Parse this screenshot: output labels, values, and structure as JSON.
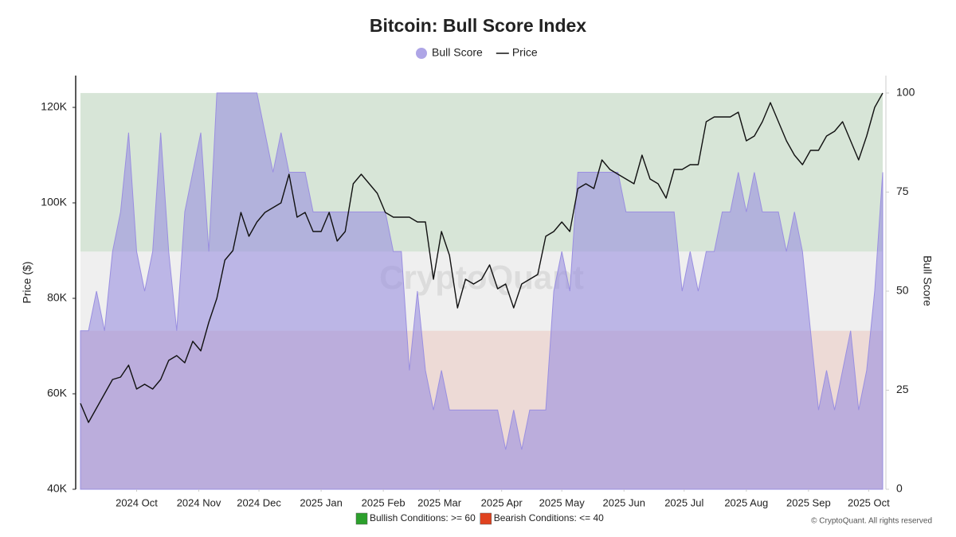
{
  "chart_data": {
    "type": "line",
    "title": "Bitcoin: Bull Score Index",
    "ylabel": "Price ($)",
    "y2label": "Bull Score",
    "watermark": "CryptoQuant",
    "copyright": "© CryptoQuant. All rights reserved",
    "xlim": [
      0,
      100
    ],
    "xticks": [
      {
        "value": 7,
        "label": "2024 Oct"
      },
      {
        "value": 14.75,
        "label": "2024 Nov"
      },
      {
        "value": 22.25,
        "label": "2024 Dec"
      },
      {
        "value": 30,
        "label": "2025 Jan"
      },
      {
        "value": 37.75,
        "label": "2025 Feb"
      },
      {
        "value": 44.75,
        "label": "2025 Mar"
      },
      {
        "value": 52.5,
        "label": "2025 Apr"
      },
      {
        "value": 60,
        "label": "2025 May"
      },
      {
        "value": 67.75,
        "label": "2025 Jun"
      },
      {
        "value": 75.25,
        "label": "2025 Jul"
      },
      {
        "value": 83,
        "label": "2025 Aug"
      },
      {
        "value": 90.75,
        "label": "2025 Sep"
      },
      {
        "value": 98.25,
        "label": "2025 Oct"
      }
    ],
    "ylim": [
      40000,
      126000
    ],
    "yticks": [
      {
        "value": 40000,
        "label": "40K"
      },
      {
        "value": 60000,
        "label": "60K"
      },
      {
        "value": 80000,
        "label": "80K"
      },
      {
        "value": 100000,
        "label": "100K"
      },
      {
        "value": 120000,
        "label": "120K"
      }
    ],
    "y2lim": [
      0,
      103.6
    ],
    "y2ticks": [
      0,
      25,
      50,
      75,
      100
    ],
    "zones": [
      {
        "from": 60,
        "to": 100,
        "color": "#2ca02c",
        "label": "Bullish Conditions: >= 60"
      },
      {
        "from": 0,
        "to": 40,
        "color": "#e0421f",
        "label": "Bearish Conditions: <= 40"
      }
    ],
    "series": [
      {
        "name": "Bull Score",
        "type": "area",
        "axis": "y2",
        "color": "#9a8fe0",
        "values": [
          40,
          40,
          50,
          40,
          60,
          70,
          90,
          60,
          50,
          60,
          90,
          60,
          40,
          70,
          80,
          90,
          60,
          100,
          100,
          100,
          100,
          100,
          100,
          90,
          80,
          90,
          80,
          80,
          80,
          70,
          70,
          70,
          70,
          70,
          70,
          70,
          70,
          70,
          70,
          60,
          60,
          30,
          50,
          30,
          20,
          30,
          20,
          20,
          20,
          20,
          20,
          20,
          20,
          10,
          20,
          10,
          20,
          20,
          20,
          50,
          60,
          50,
          80,
          80,
          80,
          80,
          80,
          80,
          70,
          70,
          70,
          70,
          70,
          70,
          70,
          50,
          60,
          50,
          60,
          60,
          70,
          70,
          80,
          70,
          80,
          70,
          70,
          70,
          60,
          70,
          60,
          40,
          20,
          30,
          20,
          30,
          40,
          20,
          30,
          50,
          80
        ]
      },
      {
        "name": "Price",
        "type": "line",
        "color": "#111111",
        "values": [
          58000,
          54000,
          57000,
          60000,
          63000,
          63500,
          66000,
          61000,
          62000,
          61000,
          63000,
          67000,
          68000,
          66500,
          71000,
          69000,
          75000,
          80000,
          88000,
          90000,
          98000,
          93000,
          96000,
          98000,
          99000,
          100000,
          106000,
          97000,
          98000,
          94000,
          94000,
          98000,
          92000,
          94000,
          104000,
          106000,
          104000,
          102000,
          98000,
          97000,
          97000,
          97000,
          96000,
          96000,
          84000,
          94000,
          89000,
          78000,
          84000,
          83000,
          84000,
          87000,
          82000,
          83000,
          78000,
          83000,
          84000,
          85000,
          93000,
          94000,
          96000,
          94000,
          103000,
          104000,
          103000,
          109000,
          107000,
          106000,
          105000,
          104000,
          110000,
          105000,
          104000,
          101000,
          107000,
          107000,
          108000,
          108000,
          117000,
          118000,
          118000,
          118000,
          119000,
          113000,
          114000,
          117000,
          121000,
          117000,
          113000,
          110000,
          108000,
          111000,
          111000,
          114000,
          115000,
          117000,
          113000,
          109000,
          114000,
          120000,
          123000
        ]
      }
    ]
  }
}
